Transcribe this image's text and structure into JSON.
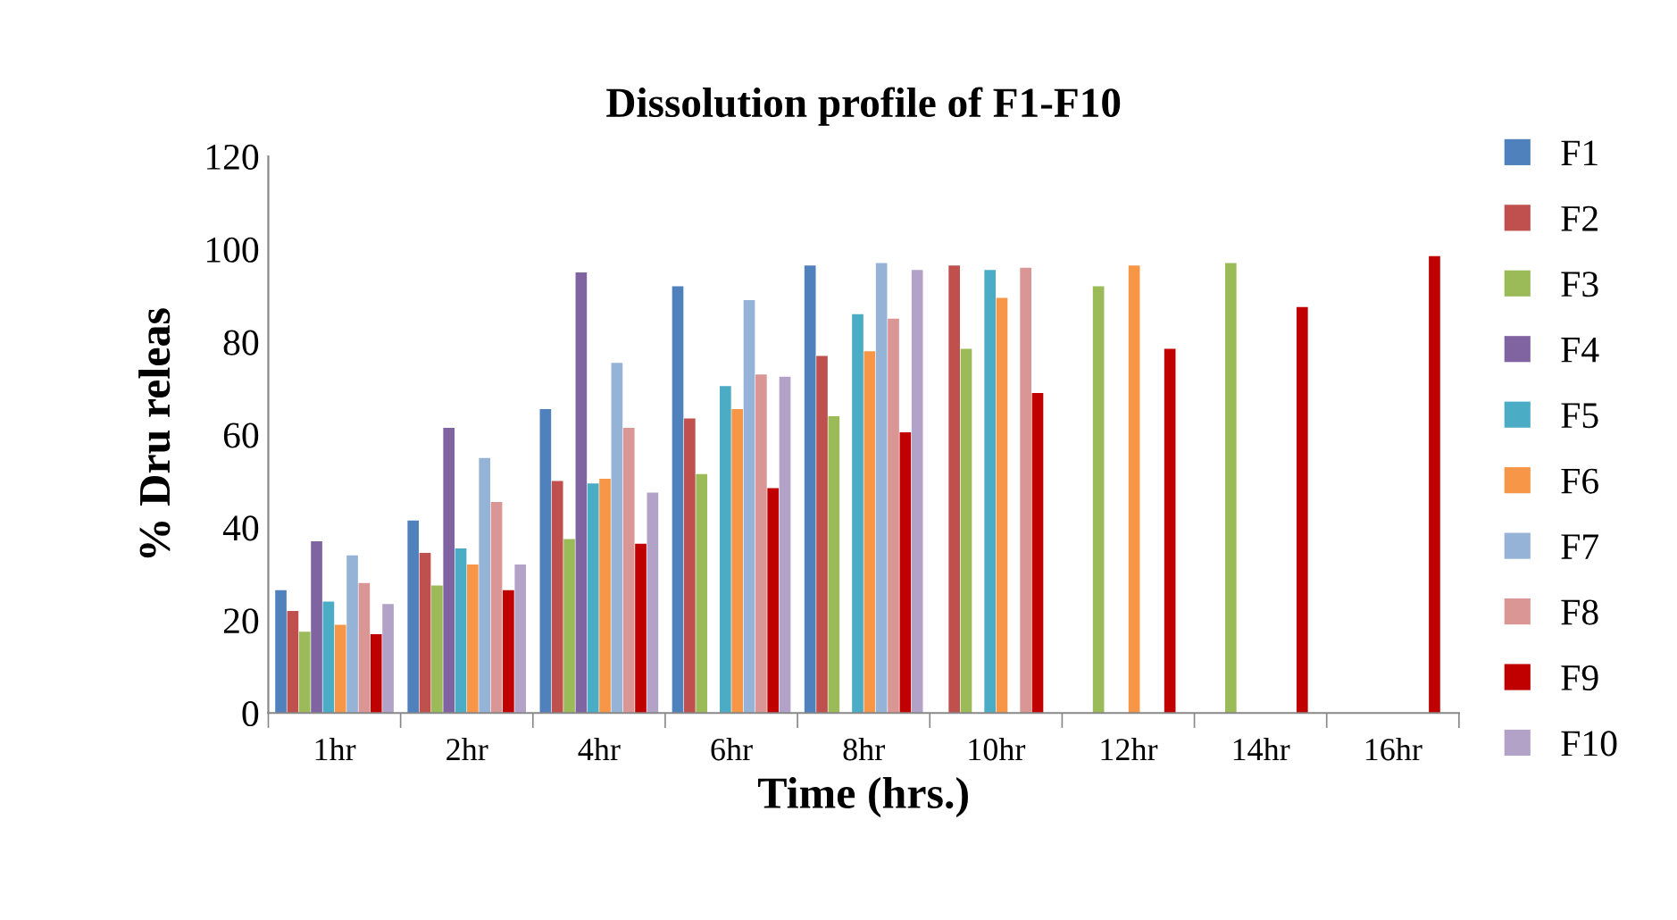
{
  "chart_data": {
    "type": "bar",
    "title": "Dissolution profile of F1-F10",
    "xlabel": "Time (hrs.)",
    "ylabel": "% Dru releas",
    "categories": [
      "1hr",
      "2hr",
      "4hr",
      "6hr",
      "8hr",
      "10hr",
      "12hr",
      "14hr",
      "16hr"
    ],
    "series": [
      {
        "name": "F1",
        "color": "#4f81bd",
        "values": [
          26.5,
          41.5,
          65.5,
          92,
          96.5,
          null,
          null,
          null,
          null
        ]
      },
      {
        "name": "F2",
        "color": "#c0504d",
        "values": [
          22,
          34.5,
          50,
          63.5,
          77,
          96.5,
          null,
          null,
          null
        ]
      },
      {
        "name": "F3",
        "color": "#9bbb59",
        "values": [
          17.5,
          27.5,
          37.5,
          51.5,
          64,
          78.5,
          92,
          97,
          null
        ]
      },
      {
        "name": "F4",
        "color": "#8064a2",
        "values": [
          37,
          61.5,
          95,
          null,
          null,
          null,
          null,
          null,
          null
        ]
      },
      {
        "name": "F5",
        "color": "#4bacc6",
        "values": [
          24,
          35.5,
          49.5,
          70.5,
          86,
          95.5,
          null,
          null,
          null
        ]
      },
      {
        "name": "F6",
        "color": "#f79646",
        "values": [
          19,
          32,
          50.5,
          65.5,
          78,
          89.5,
          96.5,
          null,
          null
        ]
      },
      {
        "name": "F7",
        "color": "#95b3d7",
        "values": [
          34,
          55,
          75.5,
          89,
          97,
          null,
          null,
          null,
          null
        ]
      },
      {
        "name": "F8",
        "color": "#d99694",
        "values": [
          28,
          45.5,
          61.5,
          73,
          85,
          96,
          null,
          null,
          null
        ]
      },
      {
        "name": "F9",
        "color": "#c00000",
        "values": [
          17,
          26.5,
          36.5,
          48.5,
          60.5,
          69,
          78.5,
          87.5,
          98.5
        ]
      },
      {
        "name": "F10",
        "color": "#b3a2c7",
        "values": [
          23.5,
          32,
          47.5,
          72.5,
          95.5,
          null,
          null,
          null,
          null
        ]
      }
    ],
    "ylim": [
      0,
      120
    ],
    "yticks": [
      0,
      20,
      40,
      60,
      80,
      100,
      120
    ],
    "grid": false,
    "legend": "right"
  }
}
